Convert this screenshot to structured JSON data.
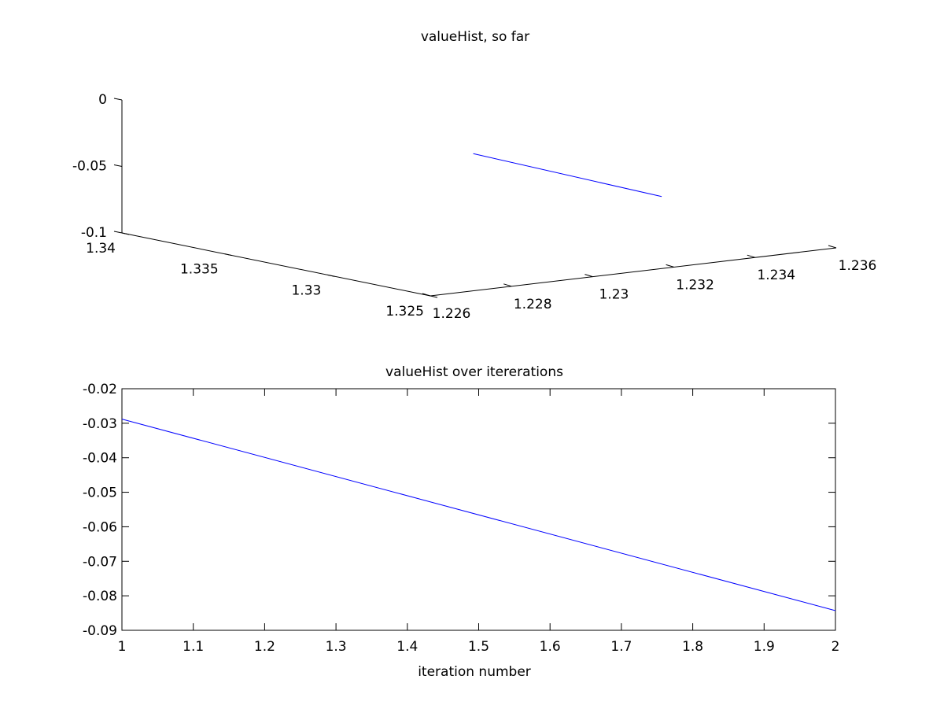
{
  "chart_data": [
    {
      "type": "line",
      "projection": "3d",
      "title": "valueHist, so far",
      "xlabel": "",
      "ylabel": "",
      "zlabel": "",
      "xlim": [
        1.226,
        1.236
      ],
      "ylim": [
        1.325,
        1.34
      ],
      "zlim": [
        -0.1,
        0
      ],
      "x_ticks": [
        1.226,
        1.228,
        1.23,
        1.232,
        1.234,
        1.236
      ],
      "x_tick_labels": [
        "1.226",
        "1.228",
        "1.23",
        "1.232",
        "1.234",
        "1.236"
      ],
      "y_ticks": [
        1.325,
        1.33,
        1.335,
        1.34
      ],
      "y_tick_labels": [
        "1.325",
        "1.33",
        "1.335",
        "1.34"
      ],
      "z_ticks": [
        -0.1,
        -0.05,
        0
      ],
      "z_tick_labels": [
        "-0.1",
        "-0.05",
        "0"
      ],
      "grid": false,
      "series": [
        {
          "color": "#0000ff",
          "points": [
            {
              "x": 1.2303,
              "y": 1.3314,
              "z": -0.0288
            },
            {
              "x": 1.2356,
              "y": 1.3327,
              "z": -0.0843
            }
          ]
        }
      ]
    },
    {
      "type": "line",
      "title": "valueHist over itererations",
      "xlabel": "iteration number",
      "ylabel": "",
      "xlim": [
        1,
        2
      ],
      "ylim": [
        -0.09,
        -0.02
      ],
      "x_ticks": [
        1,
        1.1,
        1.2,
        1.3,
        1.4,
        1.5,
        1.6,
        1.7,
        1.8,
        1.9,
        2
      ],
      "x_tick_labels": [
        "1",
        "1.1",
        "1.2",
        "1.3",
        "1.4",
        "1.5",
        "1.6",
        "1.7",
        "1.8",
        "1.9",
        "2"
      ],
      "y_ticks": [
        -0.02,
        -0.03,
        -0.04,
        -0.05,
        -0.06,
        -0.07,
        -0.08,
        -0.09
      ],
      "y_tick_labels": [
        "-0.02",
        "-0.03",
        "-0.04",
        "-0.05",
        "-0.06",
        "-0.07",
        "-0.08",
        "-0.09"
      ],
      "grid": false,
      "box": true,
      "series": [
        {
          "color": "#0000ff",
          "x": [
            1,
            2
          ],
          "y": [
            -0.0288,
            -0.0843
          ]
        }
      ]
    }
  ]
}
